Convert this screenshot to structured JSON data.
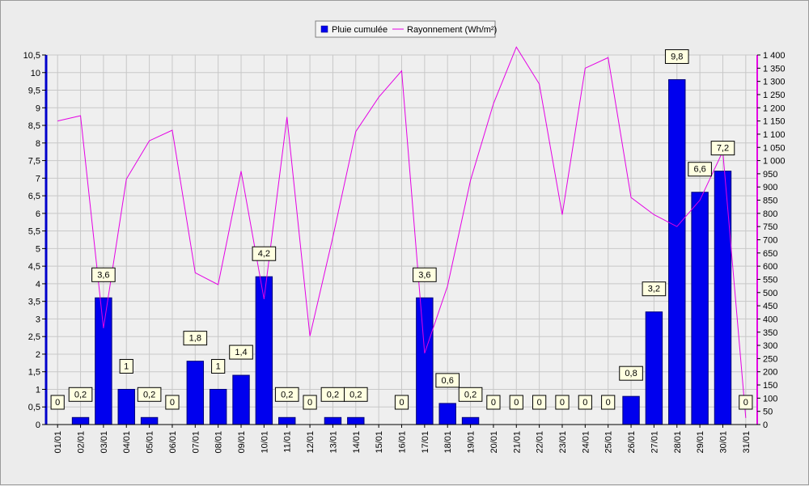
{
  "chart_data": {
    "type": "bar",
    "categories": [
      "01/01",
      "02/01",
      "03/01",
      "04/01",
      "05/01",
      "06/01",
      "07/01",
      "08/01",
      "09/01",
      "10/01",
      "11/01",
      "12/01",
      "13/01",
      "14/01",
      "15/01",
      "16/01",
      "17/01",
      "18/01",
      "19/01",
      "20/01",
      "21/01",
      "22/01",
      "23/01",
      "24/01",
      "25/01",
      "26/01",
      "27/01",
      "28/01",
      "29/01",
      "30/01",
      "31/01"
    ],
    "series": [
      {
        "name": "Pluie cumulée",
        "type": "bar",
        "axis": "left",
        "color": "#0000ee",
        "values": [
          0,
          0.2,
          3.6,
          1,
          0.2,
          0,
          1.8,
          1,
          1.4,
          4.2,
          0.2,
          0,
          0.2,
          0.2,
          0,
          0,
          3.6,
          0.6,
          0.2,
          0,
          0,
          0,
          0,
          0,
          0,
          0.8,
          3.2,
          9.8,
          6.6,
          7.2,
          0
        ],
        "data_labels": [
          "0",
          "0,2",
          "3,6",
          "1",
          "0,2",
          "0",
          "1,8",
          "1",
          "1,4",
          "4,2",
          "0,2",
          "0",
          "0,2",
          "0,2",
          "",
          "0",
          "3,6",
          "0,6",
          "0,2",
          "0",
          "0",
          "0",
          "0",
          "0",
          "0",
          "0,8",
          "3,2",
          "9,8",
          "6,6",
          "7,2",
          "0"
        ]
      },
      {
        "name": "Rayonnement (Wh/m²)",
        "type": "line",
        "axis": "right",
        "color": "#e400e4",
        "values": [
          1150,
          1170,
          365,
          930,
          1075,
          1115,
          575,
          530,
          960,
          475,
          1165,
          335,
          710,
          1110,
          1240,
          1340,
          270,
          525,
          925,
          1215,
          1430,
          1290,
          795,
          1350,
          1390,
          860,
          795,
          750,
          850,
          1035,
          25
        ]
      }
    ],
    "left_axis": {
      "min": 0,
      "max": 10.5,
      "step": 0.5,
      "tick_labels": [
        "0",
        "0,5",
        "1",
        "1,5",
        "2",
        "2,5",
        "3",
        "3,5",
        "4",
        "4,5",
        "5",
        "5,5",
        "6",
        "6,5",
        "7",
        "7,5",
        "8",
        "8,5",
        "9",
        "9,5",
        "10",
        "10,5"
      ]
    },
    "right_axis": {
      "min": 0,
      "max": 1400,
      "step": 50,
      "tick_labels": [
        "0",
        "50",
        "100",
        "150",
        "200",
        "250",
        "300",
        "350",
        "400",
        "450",
        "500",
        "550",
        "600",
        "650",
        "700",
        "750",
        "800",
        "850",
        "900",
        "950",
        "1 000",
        "1 050",
        "1 100",
        "1 150",
        "1 200",
        "1 250",
        "1 300",
        "1 350",
        "1 400"
      ]
    },
    "grid": true,
    "legend_position": "top-center",
    "colors": {
      "background": "#ececec",
      "plot_background": "#efefef",
      "grid": "#c8c8c8",
      "left_axis": "#0000cc",
      "right_axis": "#e400e4",
      "label_box": "#ffffe1"
    }
  }
}
